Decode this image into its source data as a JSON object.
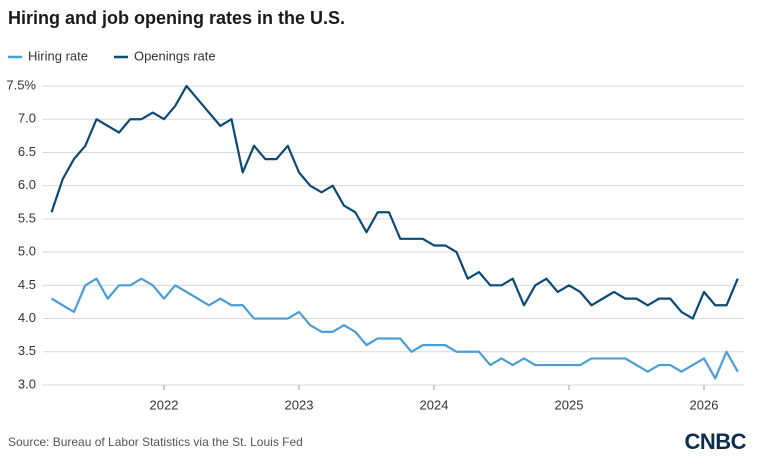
{
  "chart_data": {
    "type": "line",
    "title": "Hiring and job opening rates in the U.S.",
    "source": "Source: Bureau of Labor Statistics via the St. Louis Fed",
    "logo": "CNBC",
    "x": [
      2021.167,
      2021.25,
      2021.333,
      2021.417,
      2021.5,
      2021.583,
      2021.667,
      2021.75,
      2021.833,
      2021.917,
      2022,
      2022.083,
      2022.167,
      2022.25,
      2022.333,
      2022.417,
      2022.5,
      2022.583,
      2022.667,
      2022.75,
      2022.833,
      2022.917,
      2023,
      2023.083,
      2023.167,
      2023.25,
      2023.333,
      2023.417,
      2023.5,
      2023.583,
      2023.667,
      2023.75,
      2023.833,
      2023.917,
      2024,
      2024.083,
      2024.167,
      2024.25,
      2024.333,
      2024.417,
      2024.5,
      2024.583,
      2024.667,
      2024.75,
      2024.833,
      2024.917,
      2025,
      2025.083,
      2025.167,
      2025.25,
      2025.333,
      2025.417,
      2025.5,
      2025.583,
      2025.667,
      2025.75,
      2025.833,
      2025.917,
      2026,
      2026.083,
      2026.167,
      2026.25
    ],
    "series": [
      {
        "name": "Hiring rate",
        "color": "#4a9dd6",
        "values": [
          4.3,
          4.2,
          4.1,
          4.5,
          4.6,
          4.3,
          4.5,
          4.5,
          4.6,
          4.5,
          4.3,
          4.5,
          4.4,
          4.3,
          4.2,
          4.3,
          4.2,
          4.2,
          4.0,
          4.0,
          4.0,
          4.0,
          4.1,
          3.9,
          3.8,
          3.8,
          3.9,
          3.8,
          3.6,
          3.7,
          3.7,
          3.7,
          3.5,
          3.6,
          3.6,
          3.6,
          3.5,
          3.5,
          3.5,
          3.3,
          3.4,
          3.3,
          3.4,
          3.3,
          3.3,
          3.3,
          3.3,
          3.3,
          3.4,
          3.4,
          3.4,
          3.4,
          3.3,
          3.2,
          3.3,
          3.3,
          3.2,
          3.3,
          3.4,
          3.1,
          3.5,
          3.2
        ]
      },
      {
        "name": "Openings rate",
        "color": "#0b4a76",
        "values": [
          5.6,
          6.1,
          6.4,
          6.6,
          7.0,
          6.9,
          6.8,
          7.0,
          7.0,
          7.1,
          7.0,
          7.2,
          7.5,
          7.3,
          7.1,
          6.9,
          7.0,
          6.2,
          6.6,
          6.4,
          6.4,
          6.6,
          6.2,
          6.0,
          5.9,
          6.0,
          5.7,
          5.6,
          5.3,
          5.6,
          5.6,
          5.2,
          5.2,
          5.2,
          5.1,
          5.1,
          5.0,
          4.6,
          4.7,
          4.5,
          4.5,
          4.6,
          4.2,
          4.5,
          4.6,
          4.4,
          4.5,
          4.4,
          4.2,
          4.3,
          4.4,
          4.3,
          4.3,
          4.2,
          4.3,
          4.3,
          4.1,
          4.0,
          4.4,
          4.2,
          4.2,
          4.6
        ]
      }
    ],
    "xlim": [
      2021.1,
      2026.3
    ],
    "xticks": [
      2022,
      2023,
      2024,
      2025,
      2026
    ],
    "ylim": [
      3.0,
      7.5
    ],
    "yticks": [
      {
        "value": 3,
        "label": "3.0"
      },
      {
        "value": 3.5,
        "label": "3.5"
      },
      {
        "value": 4,
        "label": "4.0"
      },
      {
        "value": 4.5,
        "label": "4.5"
      },
      {
        "value": 5,
        "label": "5.0"
      },
      {
        "value": 5.5,
        "label": "5.5"
      },
      {
        "value": 6,
        "label": "6.0"
      },
      {
        "value": 6.5,
        "label": "6.5"
      },
      {
        "value": 7,
        "label": "7.0"
      },
      {
        "value": 7.5,
        "label": "7.5%"
      }
    ],
    "grid": true
  }
}
